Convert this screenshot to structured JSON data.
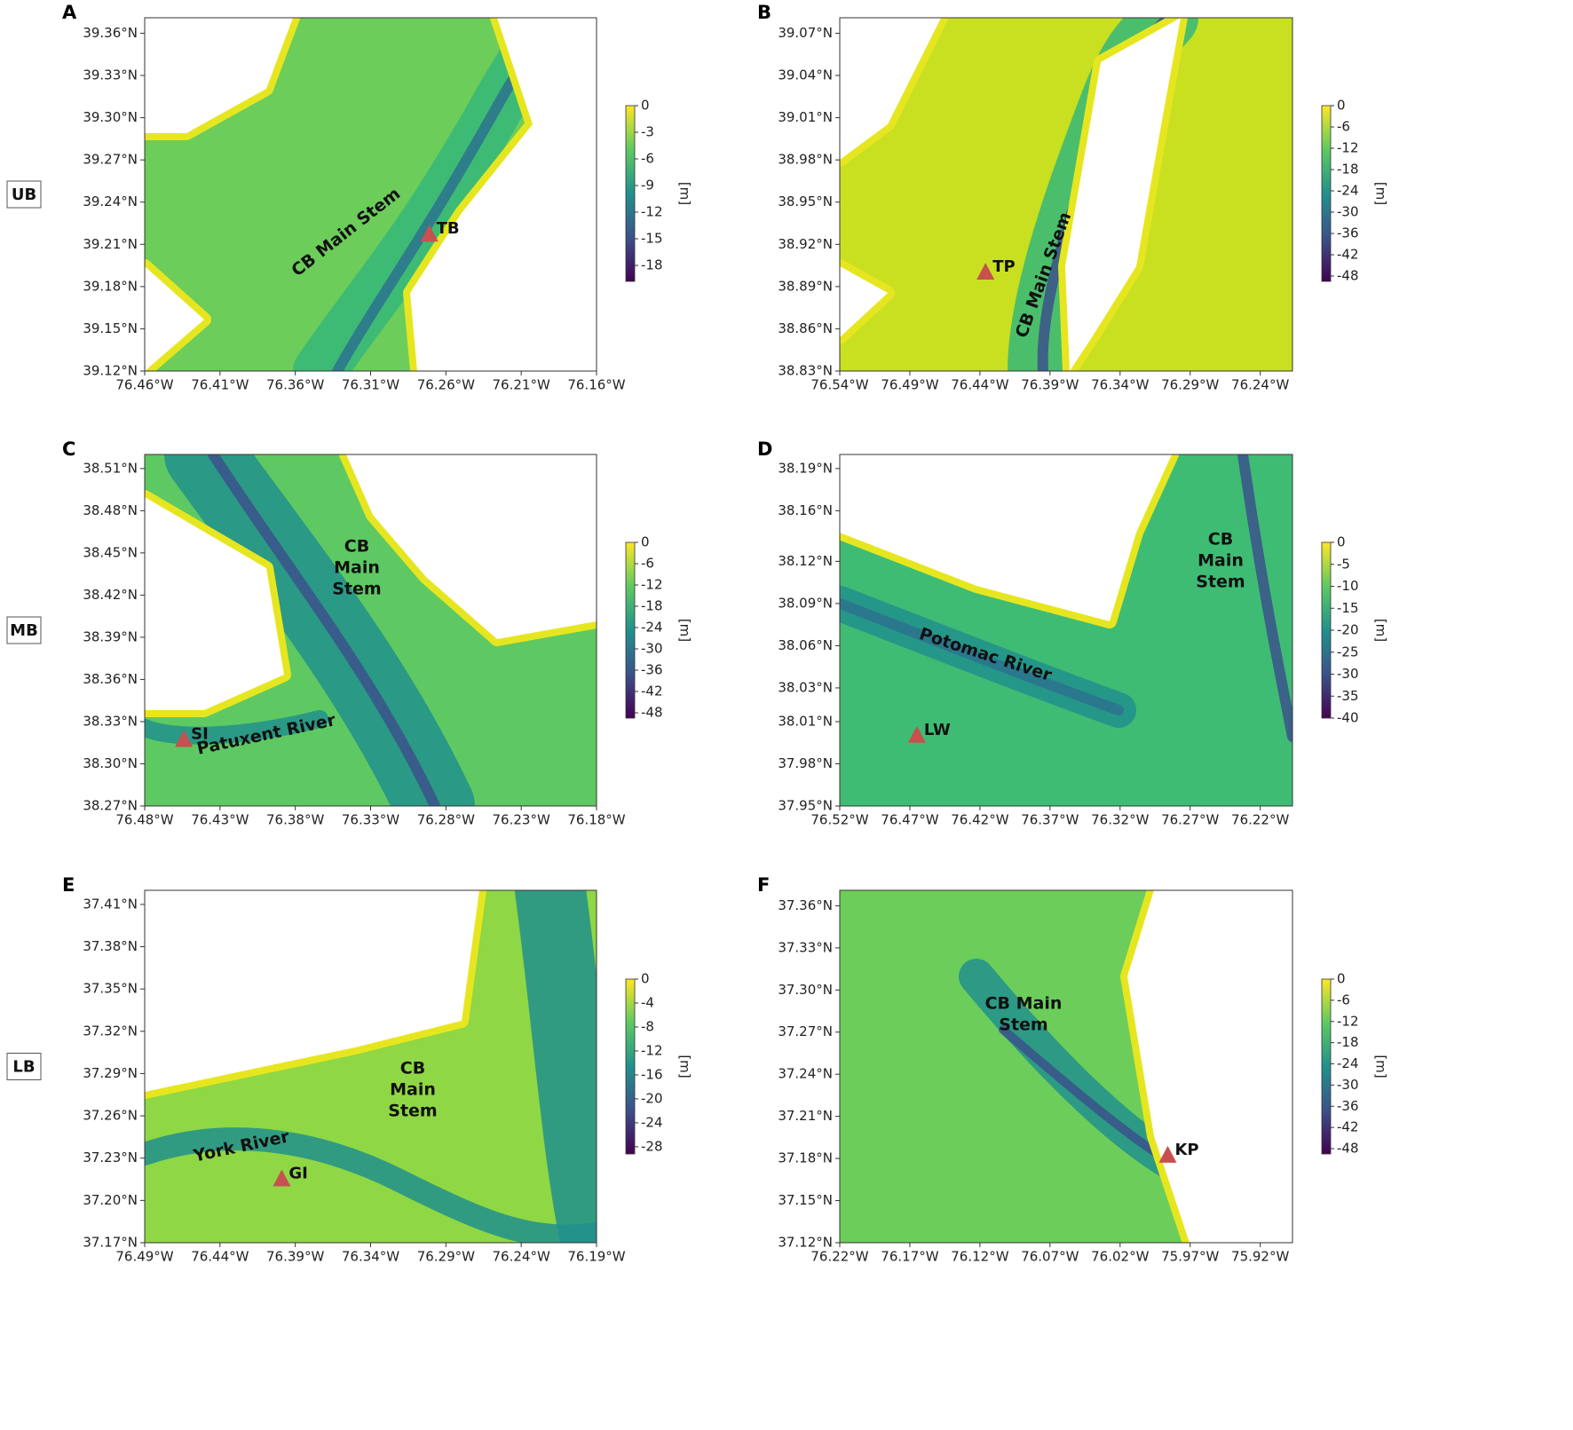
{
  "panels": [
    {
      "letter": "A",
      "region": "UB",
      "xlim": [
        -76.46,
        -76.16
      ],
      "ylim": [
        39.12,
        39.371
      ],
      "xticks": [
        {
          "value": -76.46,
          "label": "76.46°W"
        },
        {
          "value": -76.41,
          "label": "76.41°W"
        },
        {
          "value": -76.36,
          "label": "76.36°W"
        },
        {
          "value": -76.31,
          "label": "76.31°W"
        },
        {
          "value": -76.26,
          "label": "76.26°W"
        },
        {
          "value": -76.21,
          "label": "76.21°W"
        },
        {
          "value": -76.16,
          "label": "76.16°W"
        }
      ],
      "yticks": [
        {
          "value": 39.12,
          "label": "39.12°N"
        },
        {
          "value": 39.15,
          "label": "39.15°N"
        },
        {
          "value": 39.18,
          "label": "39.18°N"
        },
        {
          "value": 39.21,
          "label": "39.21°N"
        },
        {
          "value": 39.24,
          "label": "39.24°N"
        },
        {
          "value": 39.27,
          "label": "39.27°N"
        },
        {
          "value": 39.3,
          "label": "39.30°N"
        },
        {
          "value": 39.33,
          "label": "39.33°N"
        },
        {
          "value": 39.36,
          "label": "39.36°N"
        }
      ],
      "colorbar": {
        "lim": [
          -19.8,
          0
        ],
        "ticks": [
          0,
          -3,
          -6,
          -9,
          -12,
          -15,
          -18
        ],
        "label": "[m]"
      },
      "station": {
        "name": "TB",
        "lon": -76.271,
        "lat": 39.217
      },
      "annotations": [
        {
          "lines": [
            "CB Main Stem"
          ]
        }
      ]
    },
    {
      "letter": "B",
      "xlim": [
        -76.54,
        -76.217
      ],
      "ylim": [
        38.83,
        39.081
      ],
      "xticks": [
        {
          "value": -76.54,
          "label": "76.54°W"
        },
        {
          "value": -76.49,
          "label": "76.49°W"
        },
        {
          "value": -76.44,
          "label": "76.44°W"
        },
        {
          "value": -76.39,
          "label": "76.39°W"
        },
        {
          "value": -76.34,
          "label": "76.34°W"
        },
        {
          "value": -76.29,
          "label": "76.29°W"
        },
        {
          "value": -76.24,
          "label": "76.24°W"
        }
      ],
      "yticks": [
        {
          "value": 38.83,
          "label": "38.83°N"
        },
        {
          "value": 38.86,
          "label": "38.86°N"
        },
        {
          "value": 38.89,
          "label": "38.89°N"
        },
        {
          "value": 38.92,
          "label": "38.92°N"
        },
        {
          "value": 38.95,
          "label": "38.95°N"
        },
        {
          "value": 38.98,
          "label": "38.98°N"
        },
        {
          "value": 39.01,
          "label": "39.01°N"
        },
        {
          "value": 39.04,
          "label": "39.04°N"
        },
        {
          "value": 39.07,
          "label": "39.07°N"
        }
      ],
      "colorbar": {
        "lim": [
          -49.5,
          0
        ],
        "ticks": [
          0,
          -6,
          -12,
          -18,
          -24,
          -30,
          -36,
          -42,
          -48
        ],
        "label": "[m]"
      },
      "station": {
        "name": "TP",
        "lon": -76.436,
        "lat": 38.9
      },
      "annotations": [
        {
          "lines": [
            "CB Main Stem"
          ]
        }
      ]
    },
    {
      "letter": "C",
      "region": "MB",
      "xlim": [
        -76.48,
        -76.18
      ],
      "ylim": [
        38.27,
        38.52
      ],
      "xticks": [
        {
          "value": -76.48,
          "label": "76.48°W"
        },
        {
          "value": -76.43,
          "label": "76.43°W"
        },
        {
          "value": -76.38,
          "label": "76.38°W"
        },
        {
          "value": -76.33,
          "label": "76.33°W"
        },
        {
          "value": -76.28,
          "label": "76.28°W"
        },
        {
          "value": -76.23,
          "label": "76.23°W"
        },
        {
          "value": -76.18,
          "label": "76.18°W"
        }
      ],
      "yticks": [
        {
          "value": 38.27,
          "label": "38.27°N"
        },
        {
          "value": 38.3,
          "label": "38.30°N"
        },
        {
          "value": 38.33,
          "label": "38.33°N"
        },
        {
          "value": 38.36,
          "label": "38.36°N"
        },
        {
          "value": 38.39,
          "label": "38.39°N"
        },
        {
          "value": 38.42,
          "label": "38.42°N"
        },
        {
          "value": 38.45,
          "label": "38.45°N"
        },
        {
          "value": 38.48,
          "label": "38.48°N"
        },
        {
          "value": 38.51,
          "label": "38.51°N"
        }
      ],
      "colorbar": {
        "lim": [
          -49.5,
          0
        ],
        "ticks": [
          0,
          -6,
          -12,
          -18,
          -24,
          -30,
          -36,
          -42,
          -48
        ],
        "label": "[m]"
      },
      "station": {
        "name": "SI",
        "lon": -76.454,
        "lat": 38.317
      },
      "annotations": [
        {
          "lines": [
            "CB",
            "Main",
            "Stem"
          ]
        },
        {
          "lines": [
            "Patuxent River"
          ]
        }
      ]
    },
    {
      "letter": "D",
      "xlim": [
        -76.52,
        -76.197
      ],
      "ylim": [
        37.95,
        38.2
      ],
      "xticks": [
        {
          "value": -76.52,
          "label": "76.52°W"
        },
        {
          "value": -76.47,
          "label": "76.47°W"
        },
        {
          "value": -76.42,
          "label": "76.42°W"
        },
        {
          "value": -76.37,
          "label": "76.37°W"
        },
        {
          "value": -76.32,
          "label": "76.32°W"
        },
        {
          "value": -76.27,
          "label": "76.27°W"
        },
        {
          "value": -76.22,
          "label": "76.22°W"
        }
      ],
      "yticks": [
        {
          "value": 37.95,
          "label": "37.95°N"
        },
        {
          "value": 37.98,
          "label": "37.98°N"
        },
        {
          "value": 38.01,
          "label": "38.01°N"
        },
        {
          "value": 38.034,
          "label": "38.03°N"
        },
        {
          "value": 38.064,
          "label": "38.06°N"
        },
        {
          "value": 38.094,
          "label": "38.09°N"
        },
        {
          "value": 38.124,
          "label": "38.12°N"
        },
        {
          "value": 38.16,
          "label": "38.16°N"
        },
        {
          "value": 38.19,
          "label": "38.19°N"
        }
      ],
      "colorbar": {
        "lim": [
          -40,
          0
        ],
        "ticks": [
          0,
          -5,
          -10,
          -15,
          -20,
          -25,
          -30,
          -35,
          -40
        ],
        "label": "[m]"
      },
      "station": {
        "name": "LW",
        "lon": -76.465,
        "lat": 38.0
      },
      "annotations": [
        {
          "lines": [
            "CB",
            "Main",
            "Stem"
          ]
        },
        {
          "lines": [
            "Potomac River"
          ]
        }
      ]
    },
    {
      "letter": "E",
      "region": "LB",
      "xlim": [
        -76.49,
        -76.19
      ],
      "ylim": [
        37.17,
        37.42
      ],
      "xticks": [
        {
          "value": -76.49,
          "label": "76.49°W"
        },
        {
          "value": -76.44,
          "label": "76.44°W"
        },
        {
          "value": -76.39,
          "label": "76.39°W"
        },
        {
          "value": -76.34,
          "label": "76.34°W"
        },
        {
          "value": -76.29,
          "label": "76.29°W"
        },
        {
          "value": -76.24,
          "label": "76.24°W"
        },
        {
          "value": -76.19,
          "label": "76.19°W"
        }
      ],
      "yticks": [
        {
          "value": 37.17,
          "label": "37.17°N"
        },
        {
          "value": 37.2,
          "label": "37.20°N"
        },
        {
          "value": 37.23,
          "label": "37.23°N"
        },
        {
          "value": 37.26,
          "label": "37.26°N"
        },
        {
          "value": 37.29,
          "label": "37.29°N"
        },
        {
          "value": 37.32,
          "label": "37.32°N"
        },
        {
          "value": 37.35,
          "label": "37.35°N"
        },
        {
          "value": 37.38,
          "label": "37.38°N"
        },
        {
          "value": 37.41,
          "label": "37.41°N"
        }
      ],
      "colorbar": {
        "lim": [
          -29.2,
          0
        ],
        "ticks": [
          0,
          -4,
          -8,
          -12,
          -16,
          -20,
          -24,
          -28
        ],
        "label": "[m]"
      },
      "station": {
        "name": "GI",
        "lon": -76.399,
        "lat": 37.215
      },
      "annotations": [
        {
          "lines": [
            "CB",
            "Main",
            "Stem"
          ]
        },
        {
          "lines": [
            "York River"
          ]
        }
      ]
    },
    {
      "letter": "F",
      "xlim": [
        -76.22,
        -75.897
      ],
      "ylim": [
        37.12,
        37.371
      ],
      "xticks": [
        {
          "value": -76.22,
          "label": "76.22°W"
        },
        {
          "value": -76.17,
          "label": "76.17°W"
        },
        {
          "value": -76.12,
          "label": "76.12°W"
        },
        {
          "value": -76.07,
          "label": "76.07°W"
        },
        {
          "value": -76.02,
          "label": "76.02°W"
        },
        {
          "value": -75.97,
          "label": "75.97°W"
        },
        {
          "value": -75.92,
          "label": "75.92°W"
        }
      ],
      "yticks": [
        {
          "value": 37.12,
          "label": "37.12°N"
        },
        {
          "value": 37.15,
          "label": "37.15°N"
        },
        {
          "value": 37.18,
          "label": "37.18°N"
        },
        {
          "value": 37.21,
          "label": "37.21°N"
        },
        {
          "value": 37.24,
          "label": "37.24°N"
        },
        {
          "value": 37.27,
          "label": "37.27°N"
        },
        {
          "value": 37.3,
          "label": "37.30°N"
        },
        {
          "value": 37.33,
          "label": "37.33°N"
        },
        {
          "value": 37.36,
          "label": "37.36°N"
        }
      ],
      "colorbar": {
        "lim": [
          -49.5,
          0
        ],
        "ticks": [
          0,
          -6,
          -12,
          -18,
          -24,
          -30,
          -36,
          -42,
          -48
        ],
        "label": "[m]"
      },
      "station": {
        "name": "KP",
        "lon": -75.986,
        "lat": 37.182
      },
      "annotations": [
        {
          "lines": [
            "CB Main",
            "Stem"
          ]
        }
      ]
    }
  ]
}
